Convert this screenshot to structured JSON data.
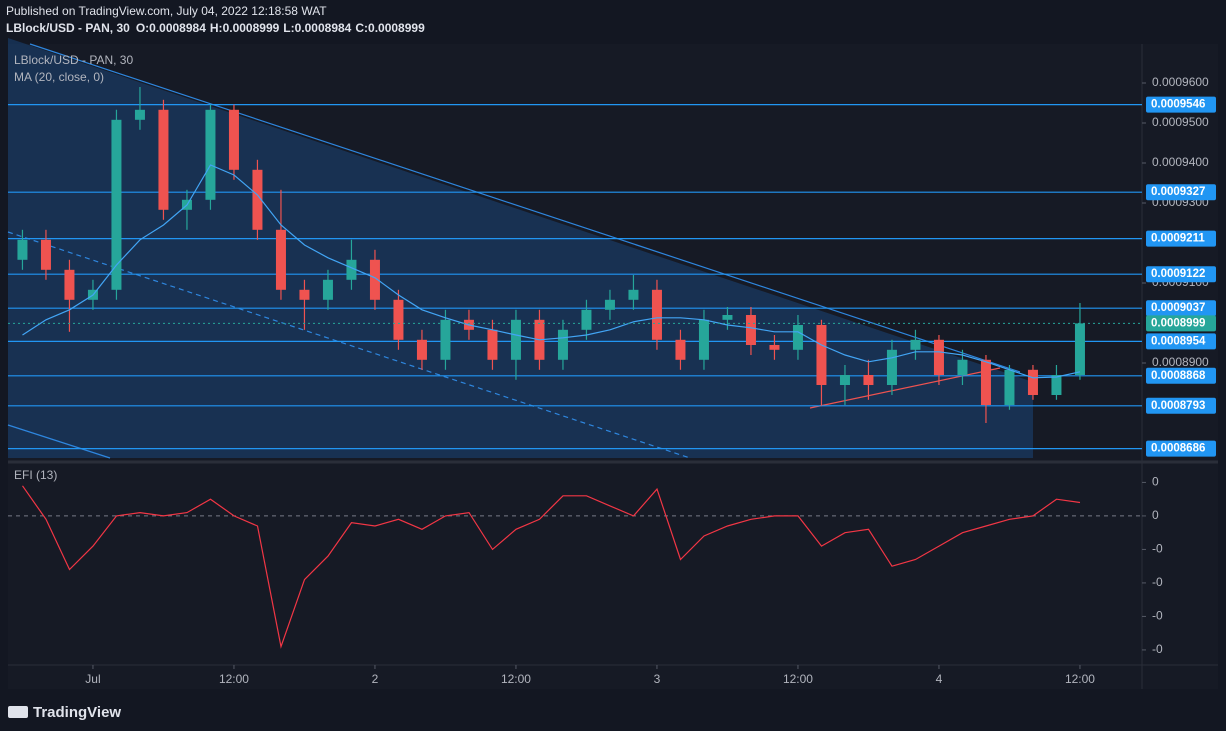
{
  "header": {
    "published": "Published on TradingView.com, July 04, 2022 12:18:58 WAT",
    "symbol": "LBlock/USD - PAN, 30",
    "ohlc": [
      {
        "label": "O:",
        "value": 0.0008984
      },
      {
        "label": "H:",
        "value": 0.0008999
      },
      {
        "label": "L:",
        "value": 0.0008984
      },
      {
        "label": "C:",
        "value": 0.0008999
      }
    ]
  },
  "footer": {
    "brand": "TradingView"
  },
  "chart_data": [
    {
      "type": "candlestick",
      "title": "LBlock/USD - PAN, 30",
      "x": [
        -6,
        -4,
        -2,
        0,
        2,
        4,
        6,
        8,
        10,
        12,
        14,
        16,
        18,
        20,
        22,
        24,
        26,
        28,
        30,
        32,
        34,
        36,
        38,
        40,
        42,
        44,
        46,
        48,
        50,
        52,
        54,
        56,
        58,
        60,
        62,
        64,
        66,
        68,
        70,
        72,
        74,
        76,
        78,
        80,
        82,
        84
      ],
      "open": [
        0.0009158,
        0.0009208,
        0.0009133,
        0.0009058,
        0.0009083,
        0.0009508,
        0.0009533,
        0.0009283,
        0.0009308,
        0.0009533,
        0.0009383,
        0.0009233,
        0.0009083,
        0.0009058,
        0.0009108,
        0.0009158,
        0.0009058,
        0.0008958,
        0.0008908,
        0.0009008,
        0.0008983,
        0.0008908,
        0.0009008,
        0.0008908,
        0.0008983,
        0.0009033,
        0.0009058,
        0.0009083,
        0.0008958,
        0.0008908,
        0.0009008,
        0.000902,
        0.0008945,
        0.0008933,
        0.0008995,
        0.0008845,
        0.000887,
        0.0008845,
        0.0008933,
        0.0008958,
        0.000887,
        0.0008908,
        0.0008795,
        0.0008883,
        0.000882,
        0.000887
      ],
      "high": [
        0.0009233,
        0.0009233,
        0.0009158,
        0.0009108,
        0.0009533,
        0.000959,
        0.0009558,
        0.0009333,
        0.0009546,
        0.0009546,
        0.0009408,
        0.0009333,
        0.0009108,
        0.0009133,
        0.0009208,
        0.0009183,
        0.0009083,
        0.0008983,
        0.0009033,
        0.0009033,
        0.0009008,
        0.0009033,
        0.0009033,
        0.0009008,
        0.0009058,
        0.0009083,
        0.000912,
        0.0009108,
        0.0008983,
        0.0009033,
        0.000904,
        0.000904,
        0.000897,
        0.000902,
        0.0009008,
        0.0008895,
        0.0008908,
        0.0008958,
        0.0008983,
        0.000897,
        0.0008933,
        0.000892,
        0.0008895,
        0.0008895,
        0.0008895,
        0.000905
      ],
      "low": [
        0.0009133,
        0.0009108,
        0.0008978,
        0.0009033,
        0.0009058,
        0.0009483,
        0.0009258,
        0.0009233,
        0.0009283,
        0.0009358,
        0.0009208,
        0.0009058,
        0.0008983,
        0.0009033,
        0.0009083,
        0.0009033,
        0.0008933,
        0.0008883,
        0.0008883,
        0.0008958,
        0.0008883,
        0.0008858,
        0.0008883,
        0.0008883,
        0.0008958,
        0.0009008,
        0.0009033,
        0.0008933,
        0.0008883,
        0.0008883,
        0.0008983,
        0.000892,
        0.0008908,
        0.0008908,
        0.0008793,
        0.0008795,
        0.0008808,
        0.000882,
        0.0008908,
        0.0008845,
        0.0008845,
        0.000875,
        0.0008783,
        0.0008808,
        0.0008808,
        0.0008858
      ],
      "close": [
        0.0009208,
        0.0009133,
        0.0009058,
        0.0009083,
        0.0009508,
        0.0009533,
        0.0009283,
        0.0009308,
        0.0009533,
        0.0009383,
        0.0009233,
        0.0009083,
        0.0009058,
        0.0009108,
        0.0009158,
        0.0009058,
        0.0008958,
        0.0008908,
        0.0009008,
        0.0008983,
        0.0008908,
        0.0009008,
        0.0008908,
        0.0008983,
        0.0009033,
        0.0009058,
        0.0009083,
        0.0008958,
        0.0008908,
        0.0009008,
        0.000902,
        0.0008945,
        0.0008933,
        0.0008995,
        0.0008845,
        0.000887,
        0.0008845,
        0.0008933,
        0.0008958,
        0.000887,
        0.0008908,
        0.0008795,
        0.0008883,
        0.000882,
        0.000887,
        0.0008999
      ],
      "up_color": "#26a69a",
      "down_color": "#ef5350",
      "series": [
        {
          "name": "MA (20, close, 0)",
          "color": "#42a5f5",
          "values": [
            0.000897,
            0.0009008,
            0.0009033,
            0.000907,
            0.0009145,
            0.0009208,
            0.0009245,
            0.0009295,
            0.0009395,
            0.000937,
            0.000932,
            0.0009245,
            0.0009195,
            0.0009163,
            0.0009138,
            0.0009113,
            0.000907,
            0.0009033,
            0.0009013,
            0.0008995,
            0.0008983,
            0.000897,
            0.0008958,
            0.0008963,
            0.000897,
            0.0008983,
            0.0009003,
            0.0009013,
            0.0009013,
            0.0009008,
            0.0008995,
            0.0008988,
            0.0008978,
            0.0008978,
            0.0008945,
            0.000892,
            0.0008903,
            0.0008913,
            0.0008928,
            0.0008928,
            0.000892,
            0.0008903,
            0.0008883,
            0.0008863,
            0.0008865,
            0.0008878
          ]
        }
      ],
      "levels": [
        0.0009546,
        0.0009327,
        0.0009211,
        0.0009122,
        0.0009037,
        0.0008954,
        0.0008868,
        0.0008793,
        0.0008686
      ],
      "level_color": "#2196f3",
      "last_price": 0.0008999,
      "xlim": [
        -7.23,
        89.28
      ],
      "ylim": [
        0.00086625,
        0.00096975
      ],
      "yticks": [
        {
          "value": 0.00096,
          "label": "0.0009600"
        },
        {
          "value": 0.00095,
          "label": "0.0009500"
        },
        {
          "value": 0.00094,
          "label": "0.0009400"
        },
        {
          "value": 0.00093,
          "label": "0.0009300"
        },
        {
          "value": 0.00091,
          "label": "0.0009100"
        },
        {
          "value": 0.00089,
          "label": "0.0008900"
        }
      ]
    },
    {
      "type": "line",
      "zero_line": true,
      "x": [
        -6,
        -4,
        -2,
        0,
        2,
        4,
        6,
        8,
        10,
        12,
        14,
        16,
        18,
        20,
        22,
        24,
        26,
        28,
        30,
        32,
        34,
        36,
        38,
        40,
        42,
        44,
        46,
        48,
        50,
        52,
        54,
        56,
        58,
        60,
        62,
        64,
        66,
        68,
        70,
        72,
        74,
        76,
        78,
        80,
        82,
        84
      ],
      "series": [
        {
          "name": "EFI (13)",
          "color": "#f23645",
          "values": [
            0.09,
            -0.01,
            -0.16,
            -0.09,
            0,
            0.01,
            0,
            0.01,
            0.05,
            0,
            -0.03,
            -0.39,
            -0.19,
            -0.12,
            -0.02,
            -0.03,
            -0.01,
            -0.04,
            0,
            0.01,
            -0.1,
            -0.04,
            -0.01,
            0.06,
            0.06,
            0.03,
            0,
            0.08,
            -0.13,
            -0.06,
            -0.03,
            -0.01,
            0,
            0,
            -0.09,
            -0.05,
            -0.04,
            -0.15,
            -0.13,
            -0.09,
            -0.05,
            -0.03,
            -0.01,
            0,
            0.05,
            0.04
          ]
        }
      ],
      "xlim": [
        -7.23,
        89.28
      ],
      "ylim": [
        -0.445,
        0.149
      ],
      "yticks": [
        {
          "value": 0.1,
          "label": "0"
        },
        {
          "value": 0,
          "label": "0"
        },
        {
          "value": -0.1,
          "label": "-0"
        },
        {
          "value": -0.2,
          "label": "-0"
        },
        {
          "value": -0.3,
          "label": "-0"
        },
        {
          "value": -0.4,
          "label": "-0"
        }
      ],
      "xticks": [
        {
          "value": 0,
          "label": "Jul"
        },
        {
          "value": 12,
          "label": "12:00"
        },
        {
          "value": 24,
          "label": "2"
        },
        {
          "value": 36,
          "label": "12:00"
        },
        {
          "value": 48,
          "label": "3"
        },
        {
          "value": 60,
          "label": "12:00"
        },
        {
          "value": 72,
          "label": "4"
        },
        {
          "value": 84,
          "label": "12:00"
        }
      ]
    }
  ]
}
